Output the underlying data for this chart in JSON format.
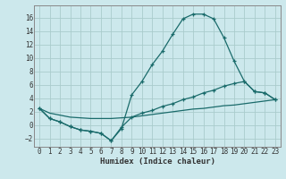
{
  "xlabel": "Humidex (Indice chaleur)",
  "background_color": "#cce8ec",
  "grid_color": "#aacccc",
  "line_color": "#1a6b6b",
  "xlim": [
    -0.5,
    23.5
  ],
  "ylim": [
    -3.2,
    17.8
  ],
  "xticks": [
    0,
    1,
    2,
    3,
    4,
    5,
    6,
    7,
    8,
    9,
    10,
    11,
    12,
    13,
    14,
    15,
    16,
    17,
    18,
    19,
    20,
    21,
    22,
    23
  ],
  "yticks": [
    -2,
    0,
    2,
    4,
    6,
    8,
    10,
    12,
    14,
    16
  ],
  "line1_x": [
    0,
    1,
    2,
    3,
    4,
    5,
    6,
    7,
    8,
    9,
    10,
    11,
    12,
    13,
    14,
    15,
    16,
    17,
    18,
    19,
    20,
    21,
    22,
    23
  ],
  "line1_y": [
    2.5,
    1.0,
    0.5,
    -0.2,
    -0.7,
    -0.9,
    -1.2,
    -2.3,
    -0.5,
    4.5,
    6.5,
    9.0,
    11.0,
    13.5,
    15.8,
    16.5,
    16.5,
    15.8,
    13.0,
    9.5,
    6.5,
    5.0,
    4.8,
    3.8
  ],
  "line2_x": [
    0,
    1,
    2,
    3,
    4,
    5,
    6,
    7,
    8,
    9,
    10,
    11,
    12,
    13,
    14,
    15,
    16,
    17,
    18,
    19,
    20,
    21,
    22,
    23
  ],
  "line2_y": [
    2.5,
    1.0,
    0.5,
    -0.2,
    -0.7,
    -0.9,
    -1.2,
    -2.3,
    -0.3,
    1.2,
    1.8,
    2.2,
    2.8,
    3.2,
    3.8,
    4.2,
    4.8,
    5.2,
    5.8,
    6.2,
    6.5,
    5.0,
    4.8,
    3.8
  ],
  "line3_x": [
    0,
    1,
    2,
    3,
    4,
    5,
    6,
    7,
    8,
    9,
    10,
    11,
    12,
    13,
    14,
    15,
    16,
    17,
    18,
    19,
    20,
    21,
    22,
    23
  ],
  "line3_y": [
    2.5,
    1.8,
    1.5,
    1.2,
    1.1,
    1.0,
    1.0,
    1.0,
    1.1,
    1.2,
    1.4,
    1.6,
    1.8,
    2.0,
    2.2,
    2.4,
    2.5,
    2.7,
    2.9,
    3.0,
    3.2,
    3.4,
    3.6,
    3.8
  ]
}
